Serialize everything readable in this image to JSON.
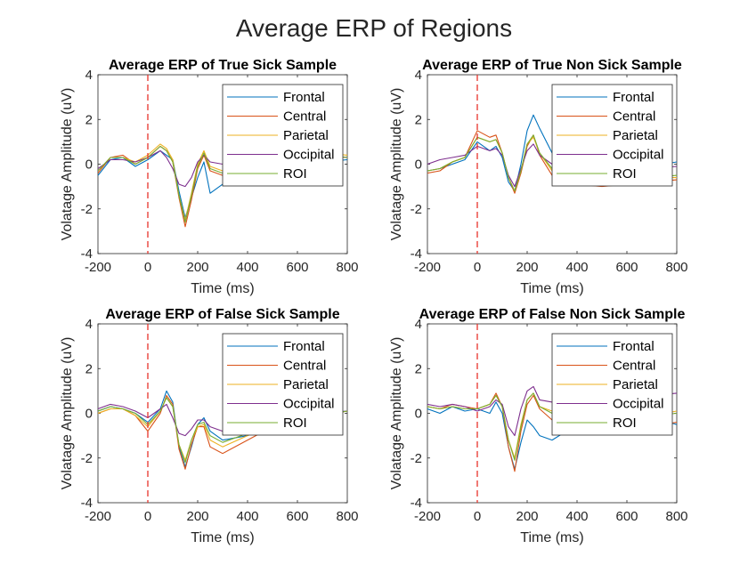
{
  "figure": {
    "title": "Average ERP of Regions"
  },
  "colors": {
    "Frontal": "#0072BD",
    "Central": "#D95319",
    "Parietal": "#EDB120",
    "Occipital": "#7E2F8E",
    "ROI": "#77AC30",
    "onset_line": "#E8332B",
    "axis": "#262626"
  },
  "chart_data": [
    {
      "type": "line",
      "title": "Average ERP of True Sick Sample",
      "xlabel": "Time (ms)",
      "ylabel": "Volatage Amplitude (uV)",
      "xlim": [
        -200,
        800
      ],
      "ylim": [
        -4,
        4
      ],
      "xticks": [
        "-200",
        "0",
        "200",
        "400",
        "600",
        "800"
      ],
      "yticks": [
        "4",
        "2",
        "0",
        "-2",
        "-4"
      ],
      "onset_line_x": 0,
      "legend_position": "top-right",
      "x": [
        -200,
        -150,
        -100,
        -50,
        0,
        50,
        75,
        100,
        125,
        150,
        175,
        200,
        225,
        250,
        300,
        400,
        500,
        600,
        700,
        800
      ],
      "series": [
        {
          "name": "Frontal",
          "values": [
            -0.5,
            0.2,
            0.3,
            -0.1,
            0.2,
            0.6,
            0.4,
            0.2,
            -1.2,
            -2.4,
            -1.5,
            -0.6,
            0.1,
            -1.3,
            -0.9,
            -0.3,
            -0.2,
            0.2,
            0.1,
            0.2
          ]
        },
        {
          "name": "Central",
          "values": [
            -0.4,
            0.3,
            0.4,
            0.0,
            0.3,
            0.8,
            0.6,
            0.1,
            -1.5,
            -2.8,
            -1.6,
            -0.2,
            0.4,
            -0.3,
            -0.5,
            -0.2,
            0.1,
            0.3,
            0.4,
            0.3
          ]
        },
        {
          "name": "Parietal",
          "values": [
            -0.3,
            0.3,
            0.3,
            0.1,
            0.4,
            0.9,
            0.7,
            0.2,
            -1.4,
            -2.5,
            -1.3,
            0.0,
            0.6,
            -0.1,
            -0.3,
            -0.1,
            0.2,
            0.4,
            0.5,
            0.4
          ]
        },
        {
          "name": "Occipital",
          "values": [
            -0.2,
            0.2,
            0.2,
            0.1,
            0.3,
            0.6,
            0.3,
            -0.2,
            -0.9,
            -1.0,
            -0.6,
            0.1,
            0.4,
            0.1,
            0.0,
            0.1,
            0.2,
            0.3,
            0.4,
            0.3
          ]
        },
        {
          "name": "ROI",
          "values": [
            -0.3,
            0.3,
            0.3,
            0.0,
            0.3,
            0.8,
            0.6,
            0.1,
            -1.4,
            -2.6,
            -1.4,
            -0.1,
            0.5,
            -0.2,
            -0.4,
            -0.1,
            0.1,
            0.3,
            0.4,
            0.3
          ]
        }
      ]
    },
    {
      "type": "line",
      "title": "Average ERP of True Non Sick Sample",
      "xlabel": "Time (ms)",
      "ylabel": "Volatage Amplitude (uV)",
      "xlim": [
        -200,
        800
      ],
      "ylim": [
        -4,
        4
      ],
      "xticks": [
        "-200",
        "0",
        "200",
        "400",
        "600",
        "800"
      ],
      "yticks": [
        "4",
        "2",
        "0",
        "-2",
        "-4"
      ],
      "onset_line_x": 0,
      "legend_position": "top-right",
      "x": [
        -200,
        -150,
        -100,
        -50,
        0,
        50,
        75,
        100,
        125,
        150,
        175,
        200,
        225,
        250,
        300,
        400,
        500,
        600,
        700,
        800
      ],
      "series": [
        {
          "name": "Frontal",
          "values": [
            -0.3,
            -0.2,
            0.0,
            0.2,
            1.0,
            0.6,
            0.8,
            0.3,
            -0.8,
            -1.2,
            0.0,
            1.5,
            2.2,
            1.6,
            0.5,
            0.0,
            -0.2,
            -0.3,
            -0.1,
            0.1
          ]
        },
        {
          "name": "Central",
          "values": [
            -0.4,
            -0.3,
            0.1,
            0.3,
            1.5,
            1.2,
            1.3,
            0.5,
            -0.6,
            -1.3,
            -0.4,
            0.8,
            1.3,
            0.4,
            -0.5,
            -0.9,
            -1.0,
            -0.9,
            -0.8,
            -0.7
          ]
        },
        {
          "name": "Parietal",
          "values": [
            -0.3,
            -0.2,
            0.1,
            0.3,
            1.2,
            1.0,
            1.1,
            0.5,
            -0.6,
            -1.2,
            -0.3,
            0.9,
            1.2,
            0.5,
            -0.3,
            -0.6,
            -0.7,
            -0.6,
            -0.6,
            -0.6
          ]
        },
        {
          "name": "Occipital",
          "values": [
            0.0,
            0.2,
            0.3,
            0.4,
            0.8,
            0.6,
            0.7,
            0.4,
            -0.5,
            -1.0,
            -0.2,
            0.6,
            0.9,
            0.4,
            0.0,
            -0.2,
            -0.3,
            -0.2,
            -0.2,
            -0.1
          ]
        },
        {
          "name": "ROI",
          "values": [
            -0.3,
            -0.2,
            0.1,
            0.3,
            1.2,
            1.0,
            1.1,
            0.5,
            -0.6,
            -1.2,
            -0.3,
            0.9,
            1.3,
            0.5,
            -0.2,
            -0.6,
            -0.7,
            -0.6,
            -0.6,
            -0.5
          ]
        }
      ]
    },
    {
      "type": "line",
      "title": "Average ERP of False Sick Sample",
      "xlabel": "Time (ms)",
      "ylabel": "Volatage Amplitude (uV)",
      "xlim": [
        -200,
        800
      ],
      "ylim": [
        -4,
        4
      ],
      "xticks": [
        "-200",
        "0",
        "200",
        "400",
        "600",
        "800"
      ],
      "yticks": [
        "4",
        "2",
        "0",
        "-2",
        "-4"
      ],
      "onset_line_x": 0,
      "legend_position": "top-right",
      "x": [
        -200,
        -150,
        -100,
        -50,
        0,
        50,
        75,
        100,
        125,
        150,
        175,
        200,
        225,
        250,
        300,
        400,
        500,
        600,
        700,
        800
      ],
      "series": [
        {
          "name": "Frontal",
          "values": [
            0.1,
            0.3,
            0.2,
            0.0,
            -0.4,
            0.2,
            1.0,
            0.5,
            -1.5,
            -2.4,
            -1.5,
            -0.5,
            -0.2,
            -0.8,
            -1.2,
            -1.0,
            -0.4,
            -0.2,
            0.0,
            0.1
          ]
        },
        {
          "name": "Central",
          "values": [
            0.0,
            0.2,
            0.2,
            -0.1,
            -0.8,
            0.0,
            0.8,
            0.4,
            -1.6,
            -2.5,
            -1.4,
            -0.6,
            -0.6,
            -1.5,
            -1.8,
            -1.2,
            -0.6,
            -0.4,
            -0.1,
            0.1
          ]
        },
        {
          "name": "Parietal",
          "values": [
            0.0,
            0.2,
            0.2,
            -0.1,
            -0.6,
            0.1,
            0.7,
            0.3,
            -1.4,
            -2.1,
            -1.2,
            -0.6,
            -0.5,
            -1.2,
            -1.5,
            -1.0,
            -0.5,
            -0.3,
            -0.1,
            0.1
          ]
        },
        {
          "name": "Occipital",
          "values": [
            0.2,
            0.4,
            0.3,
            0.1,
            -0.2,
            0.2,
            0.4,
            -0.2,
            -0.9,
            -1.0,
            -0.7,
            -0.3,
            -0.3,
            -0.6,
            -0.8,
            -0.6,
            -0.3,
            -0.2,
            0.0,
            0.1
          ]
        },
        {
          "name": "ROI",
          "values": [
            0.1,
            0.3,
            0.2,
            0.0,
            -0.5,
            0.1,
            0.7,
            0.3,
            -1.4,
            -2.2,
            -1.2,
            -0.5,
            -0.4,
            -1.0,
            -1.3,
            -0.9,
            -0.5,
            -0.3,
            -0.1,
            0.1
          ]
        }
      ]
    },
    {
      "type": "line",
      "title": "Average ERP of False Non Sick Sample",
      "xlabel": "Time (ms)",
      "ylabel": "Volatage Amplitude (uV)",
      "xlim": [
        -200,
        800
      ],
      "ylim": [
        -4,
        4
      ],
      "xticks": [
        "-200",
        "0",
        "200",
        "400",
        "600",
        "800"
      ],
      "yticks": [
        "4",
        "2",
        "0",
        "-2",
        "-4"
      ],
      "onset_line_x": 0,
      "legend_position": "top-right",
      "x": [
        -200,
        -150,
        -100,
        -50,
        0,
        50,
        75,
        100,
        125,
        150,
        175,
        200,
        225,
        250,
        300,
        400,
        500,
        600,
        700,
        800
      ],
      "series": [
        {
          "name": "Frontal",
          "values": [
            0.2,
            0.0,
            0.3,
            0.1,
            0.2,
            0.0,
            0.5,
            0.0,
            -1.5,
            -2.5,
            -1.3,
            -0.3,
            -0.6,
            -1.0,
            -1.2,
            -0.5,
            -0.4,
            -0.3,
            -0.2,
            -0.5
          ]
        },
        {
          "name": "Central",
          "values": [
            0.3,
            0.2,
            0.4,
            0.3,
            0.2,
            0.4,
            0.9,
            0.3,
            -1.5,
            -2.6,
            -0.8,
            0.4,
            0.8,
            0.2,
            -0.3,
            -0.4,
            -0.8,
            -0.9,
            -0.6,
            -0.4
          ]
        },
        {
          "name": "Parietal",
          "values": [
            0.3,
            0.2,
            0.3,
            0.2,
            0.2,
            0.4,
            0.8,
            0.3,
            -1.2,
            -2.0,
            -0.5,
            0.6,
            0.9,
            0.3,
            0.1,
            0.0,
            -0.2,
            -0.3,
            -0.1,
            0.1
          ]
        },
        {
          "name": "Occipital",
          "values": [
            0.4,
            0.3,
            0.4,
            0.3,
            0.1,
            0.3,
            0.6,
            0.4,
            -0.6,
            -1.0,
            0.2,
            1.0,
            1.2,
            0.6,
            0.5,
            0.4,
            0.4,
            0.5,
            0.8,
            0.9
          ]
        },
        {
          "name": "ROI",
          "values": [
            0.3,
            0.2,
            0.3,
            0.2,
            0.2,
            0.4,
            0.8,
            0.3,
            -1.2,
            -2.1,
            -0.6,
            0.6,
            0.9,
            0.3,
            0.0,
            -0.1,
            -0.2,
            -0.3,
            -0.1,
            0.0
          ]
        }
      ]
    }
  ]
}
